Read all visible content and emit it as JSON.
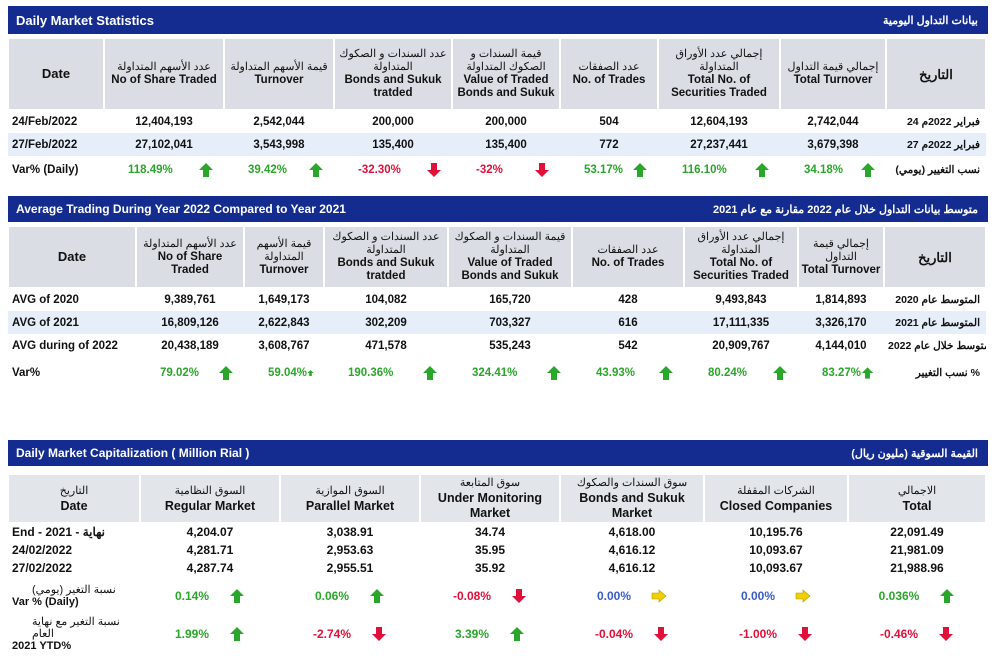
{
  "section1": {
    "title_en": "Daily Market Statistics",
    "title_ar": "بيانات التداول اليومية",
    "headers": [
      {
        "ar": "",
        "en": "Date"
      },
      {
        "ar": "عدد الأسهم المتداولة",
        "en": "No of Share Traded"
      },
      {
        "ar": "قيمة الأسهم المتداولة",
        "en": "Turnover"
      },
      {
        "ar": "عدد السندات و الصكوك المتداولة",
        "en": "Bonds and Sukuk tratded"
      },
      {
        "ar": "قيمة السندات و الصكوك المتداولة",
        "en": "Value of Traded Bonds and Sukuk"
      },
      {
        "ar": "عدد الصفقات",
        "en": "No. of Trades"
      },
      {
        "ar": "إجمالي عدد الأوراق المتداولة",
        "en": "Total No. of Securities Traded"
      },
      {
        "ar": "إجمالي قيمة التداول",
        "en": "Total Turnover"
      },
      {
        "ar": "التاريخ",
        "en": ""
      }
    ],
    "rows": [
      {
        "date": "24/Feb/2022",
        "values": [
          "12,404,193",
          "2,542,044",
          "200,000",
          "200,000",
          "504",
          "12,604,193",
          "2,742,044"
        ],
        "date_ar": "24 فبراير 2022م"
      },
      {
        "date": "27/Feb/2022",
        "values": [
          "27,102,041",
          "3,543,998",
          "135,400",
          "135,400",
          "772",
          "27,237,441",
          "3,679,398"
        ],
        "date_ar": "27 فبراير 2022م"
      }
    ],
    "var_row": {
      "label": "Var% (Daily)",
      "label_ar": "نسب التغيير (يومي)",
      "cells": [
        {
          "value": "118.49%",
          "dir": "up"
        },
        {
          "value": "39.42%",
          "dir": "up"
        },
        {
          "value": "-32.30%",
          "dir": "down"
        },
        {
          "value": "-32%",
          "dir": "down"
        },
        {
          "value": "53.17%",
          "dir": "up"
        },
        {
          "value": "116.10%",
          "dir": "up"
        },
        {
          "value": "34.18%",
          "dir": "up"
        }
      ]
    }
  },
  "section2": {
    "title_en": "Average Trading During Year 2022 Compared to Year 2021",
    "title_ar": "متوسط بيانات التداول خلال عام 2022 مقارنة مع عام 2021",
    "headers": [
      {
        "ar": "",
        "en": "Date"
      },
      {
        "ar": "عدد الأسهم المتداولة",
        "en": "No of Share Traded"
      },
      {
        "ar": "قيمة الأسهم المتداولة",
        "en": "Turnover"
      },
      {
        "ar": "عدد السندات و الصكوك المتداولة",
        "en": "Bonds and Sukuk tratded"
      },
      {
        "ar": "قيمة السندات و الصكوك المتداولة",
        "en": "Value of Traded Bonds and Sukuk"
      },
      {
        "ar": "عدد الصفقات",
        "en": "No. of Trades"
      },
      {
        "ar": "إجمالي عدد الأوراق المتداولة",
        "en": "Total No. of Securities Traded"
      },
      {
        "ar": "إجمالي قيمة التداول",
        "en": "Total Turnover"
      },
      {
        "ar": "التاريخ",
        "en": ""
      }
    ],
    "rows": [
      {
        "date": "AVG of 2020",
        "values": [
          "9,389,761",
          "1,649,173",
          "104,082",
          "165,720",
          "428",
          "9,493,843",
          "1,814,893"
        ],
        "date_ar": "المتوسط عام 2020"
      },
      {
        "date": "AVG of 2021",
        "values": [
          "16,809,126",
          "2,622,843",
          "302,209",
          "703,327",
          "616",
          "17,111,335",
          "3,326,170"
        ],
        "date_ar": "المتوسط عام 2021"
      },
      {
        "date": "AVG during of 2022",
        "values": [
          "20,438,189",
          "3,608,767",
          "471,578",
          "535,243",
          "542",
          "20,909,767",
          "4,144,010"
        ],
        "date_ar": "المتوسط خلال عام 2022"
      }
    ],
    "var_row": {
      "label": "Var%",
      "label_ar": "نسب التغيير %",
      "cells": [
        {
          "value": "79.02%",
          "dir": "up"
        },
        {
          "value": "59.04%",
          "dir": "up"
        },
        {
          "value": "190.36%",
          "dir": "up"
        },
        {
          "value": "324.41%",
          "dir": "up"
        },
        {
          "value": "43.93%",
          "dir": "up"
        },
        {
          "value": "80.24%",
          "dir": "up"
        },
        {
          "value": "83.27%",
          "dir": "up"
        }
      ]
    }
  },
  "section3": {
    "title_en": "Daily Market Capitalization ( Million Rial )",
    "title_ar": "القيمة السوقية (مليون ريال)",
    "headers": [
      {
        "ar": "التاريخ",
        "en": "Date"
      },
      {
        "ar": "السوق النظامية",
        "en": "Regular Market"
      },
      {
        "ar": "السوق الموازية",
        "en": "Parallel Market"
      },
      {
        "ar": "سوق المتابعة",
        "en": "Under Monitoring Market"
      },
      {
        "ar": "سوق السندات والصكوك",
        "en": "Bonds and Sukuk Market"
      },
      {
        "ar": "الشركات المقفلة",
        "en": "Closed Companies"
      },
      {
        "ar": "الاجمالي",
        "en": "Total"
      }
    ],
    "rows": [
      {
        "date": "End - 2021 - نهاية",
        "values": [
          "4,204.07",
          "3,038.91",
          "34.74",
          "4,618.00",
          "10,195.76",
          "22,091.49"
        ]
      },
      {
        "date": "24/02/2022",
        "values": [
          "4,281.71",
          "2,953.63",
          "35.95",
          "4,616.12",
          "10,093.67",
          "21,981.09"
        ]
      },
      {
        "date": "27/02/2022",
        "values": [
          "4,287.74",
          "2,955.51",
          "35.92",
          "4,616.12",
          "10,093.67",
          "21,988.96"
        ]
      }
    ],
    "var_daily": {
      "label_ar": "نسبة التغير (يومي)",
      "label_en": "Var % (Daily)",
      "cells": [
        {
          "value": "0.14%",
          "dir": "up"
        },
        {
          "value": "0.06%",
          "dir": "up"
        },
        {
          "value": "-0.08%",
          "dir": "down"
        },
        {
          "value": "0.00%",
          "dir": "flat"
        },
        {
          "value": "0.00%",
          "dir": "flat"
        },
        {
          "value": "0.036%",
          "dir": "up"
        }
      ]
    },
    "var_ytd": {
      "label_ar": "نسبة التغير مع نهاية العام",
      "label_en": "2021 YTD%",
      "cells": [
        {
          "value": "1.99%",
          "dir": "up"
        },
        {
          "value": "-2.74%",
          "dir": "down"
        },
        {
          "value": "3.39%",
          "dir": "up"
        },
        {
          "value": "-0.04%",
          "dir": "down"
        },
        {
          "value": "-1.00%",
          "dir": "down"
        },
        {
          "value": "-0.46%",
          "dir": "down"
        }
      ]
    }
  },
  "colors": {
    "banner": "#142c8f",
    "up": "#2aa62a",
    "down": "#e0103a",
    "flat": "#3a5cc8",
    "flat_arrow": "#f0d000"
  }
}
